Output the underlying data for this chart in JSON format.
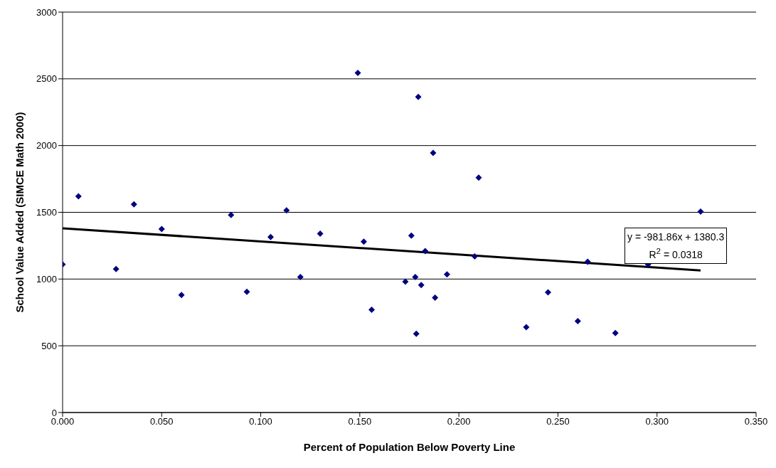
{
  "chart_data": {
    "type": "scatter",
    "xlabel": "Percent of Population Below Poverty Line",
    "ylabel": "School Value Added (SIMCE Math 2000)",
    "xlim": [
      0,
      0.35
    ],
    "xticks": [
      {
        "value": 0,
        "label": "0.000"
      },
      {
        "value": 0.05,
        "label": "0.050"
      },
      {
        "value": 0.1,
        "label": "0.100"
      },
      {
        "value": 0.15,
        "label": "0.150"
      },
      {
        "value": 0.2,
        "label": "0.200"
      },
      {
        "value": 0.25,
        "label": "0.250"
      },
      {
        "value": 0.3,
        "label": "0.300"
      },
      {
        "value": 0.35,
        "label": "0.350"
      }
    ],
    "ylim": [
      0,
      3000
    ],
    "yticks": [
      0,
      500,
      1000,
      1500,
      2000,
      2500,
      3000
    ],
    "grid": "y",
    "marker": "diamond",
    "annotations": [
      "y = -981.86x + 1380.3",
      "R$^{2}$ = 0.0318"
    ],
    "series": [
      {
        "color": "#000080",
        "x": [
          0,
          0.008,
          0.027,
          0.036,
          0.05,
          0.06,
          0.085,
          0.093,
          0.105,
          0.113,
          0.12,
          0.13,
          0.149,
          0.152,
          0.156,
          0.1795,
          0.187,
          0.21,
          0.322,
          0.176,
          0.183,
          0.208,
          0.265,
          0.2955,
          0.194,
          0.178,
          0.173,
          0.181,
          0.188,
          0.245,
          0.1785,
          0.234,
          0.26,
          0.279
        ],
        "values": [
          1110,
          1620,
          1075,
          1560,
          1375,
          880,
          1480,
          905,
          1315,
          1515,
          1015,
          1340,
          2545,
          1280,
          770,
          2365,
          1945,
          1760,
          1505,
          1325,
          1210,
          1170,
          1130,
          1110,
          1035,
          1015,
          980,
          955,
          860,
          900,
          590,
          640,
          685,
          595
        ]
      },
      {
        "type": "line",
        "color": "#000000",
        "line_style": "solid",
        "marker": "none",
        "x": [
          0,
          0.322
        ],
        "values": [
          1380,
          1064
        ]
      }
    ]
  }
}
